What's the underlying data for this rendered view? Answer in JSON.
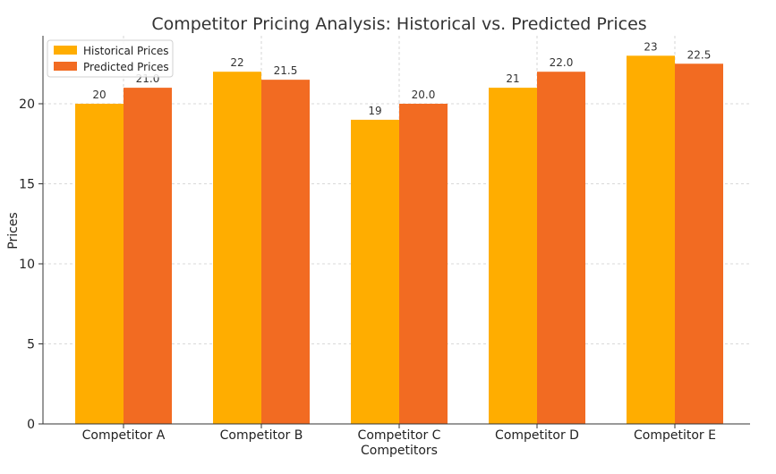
{
  "chart_data": {
    "type": "bar",
    "title": "Competitor Pricing Analysis: Historical vs. Predicted Prices",
    "xlabel": "Competitors",
    "ylabel": "Prices",
    "categories": [
      "Competitor A",
      "Competitor B",
      "Competitor C",
      "Competitor D",
      "Competitor E"
    ],
    "series": [
      {
        "name": "Historical Prices",
        "color": "#FFAD00",
        "values": [
          20,
          22,
          19,
          21,
          23
        ],
        "labels": [
          "20",
          "22",
          "19",
          "21",
          "23"
        ]
      },
      {
        "name": "Predicted Prices",
        "color": "#F26B22",
        "values": [
          21.0,
          21.5,
          20.0,
          22.0,
          22.5
        ],
        "labels": [
          "21.0",
          "21.5",
          "20.0",
          "22.0",
          "22.5"
        ]
      }
    ],
    "yticks": [
      "0",
      "5",
      "10",
      "15",
      "20"
    ],
    "ylim": [
      0,
      23.0
    ],
    "grid": true,
    "legend_position": "top-left"
  }
}
